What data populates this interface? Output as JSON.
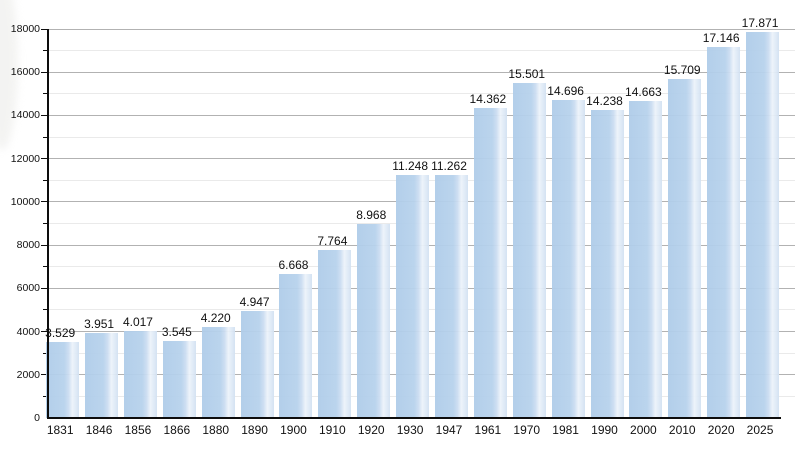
{
  "chart_data": {
    "type": "bar",
    "title": "",
    "xlabel": "",
    "ylabel": "",
    "categories": [
      "1831",
      "1846",
      "1856",
      "1866",
      "1880",
      "1890",
      "1900",
      "1910",
      "1920",
      "1930",
      "1947",
      "1961",
      "1970",
      "1981",
      "1990",
      "2000",
      "2010",
      "2020",
      "2025"
    ],
    "values": [
      3529,
      3951,
      4017,
      3545,
      4220,
      4947,
      6668,
      7764,
      8968,
      11248,
      11262,
      14362,
      15501,
      14696,
      14238,
      14663,
      15709,
      17146,
      17871
    ],
    "value_labels": [
      "3.529",
      "3.951",
      "4.017",
      "3.545",
      "4.220",
      "4.947",
      "6.668",
      "7.764",
      "8.968",
      "11.248",
      "11.262",
      "14.362",
      "15.501",
      "14.696",
      "14.238",
      "14.663",
      "15.709",
      "17.146",
      "17.871"
    ],
    "ylim": [
      0,
      18000
    ],
    "y_major_step": 2000,
    "y_minor_step": 1000,
    "y_tick_labels": [
      "0",
      "2000",
      "4000",
      "6000",
      "8000",
      "10000",
      "12000",
      "14000",
      "16000",
      "18000"
    ],
    "grid": "horizontal, major and minor lines, on",
    "legend_position": "none",
    "colors": {
      "background": "#ffffff",
      "bar_left": "#afcce9",
      "bar_mid": "#b7d2ec",
      "bar_light": "#cadcf1",
      "bar_highlight": "#ecf3fa",
      "bar_right_fade": "#d2e1f2",
      "grid_major": "#b2b2b2",
      "grid_minor": "#eaeaea",
      "axis": "#0d0d0d",
      "text": "#111111"
    }
  }
}
